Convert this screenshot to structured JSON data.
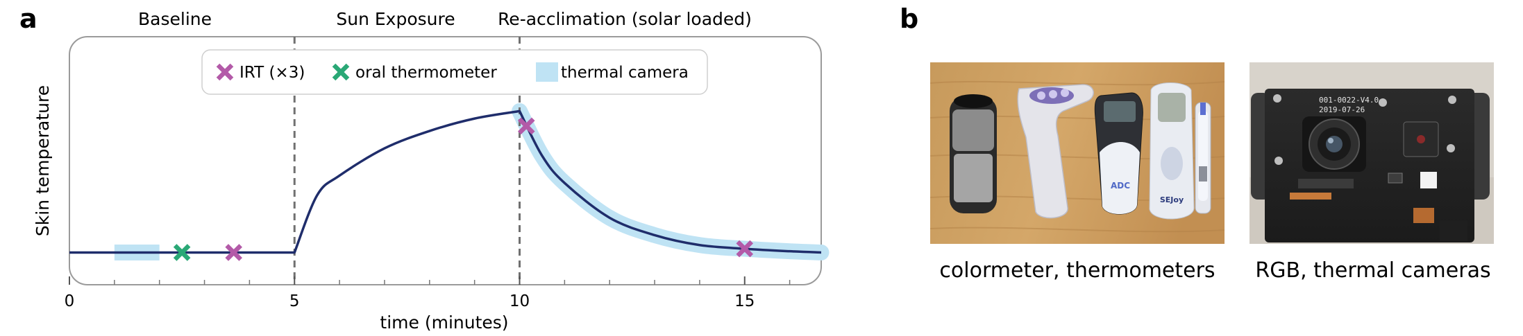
{
  "panel_a": {
    "letter": "a"
  },
  "panel_b": {
    "letter": "b"
  },
  "phases": {
    "baseline": "Baseline",
    "sun": "Sun Exposure",
    "reacclimation": "Re-acclimation (solar loaded)"
  },
  "legend": {
    "irt": "IRT (×3)",
    "oral": "oral thermometer",
    "thermal": "thermal camera"
  },
  "colors": {
    "curve": "#1f2d6b",
    "irt": "#b35aa8",
    "oral": "#2aa876",
    "thermal": "#bfe3f4",
    "divider": "#707070"
  },
  "photos": {
    "left_caption": "colormeter, thermometers",
    "right_caption": "RGB, thermal cameras",
    "device_labels": [
      "ADC",
      "SEJoy"
    ],
    "board_labels": [
      "001-0022-V4.0",
      "2019-07-26"
    ]
  },
  "chart_data": {
    "type": "line",
    "title": "",
    "xlabel": "time (minutes)",
    "ylabel": "Skin temperature",
    "xlim": [
      0,
      16.7
    ],
    "ylim": [
      0,
      1.0
    ],
    "xticks": [
      0,
      5,
      10,
      15
    ],
    "xtick_labels": [
      "0",
      "5",
      "10",
      "15"
    ],
    "minor_xticks": [
      1,
      2,
      3,
      4,
      6,
      7,
      8,
      9,
      11,
      12,
      13,
      14,
      16
    ],
    "phase_boundaries": [
      5,
      10
    ],
    "series": [
      {
        "name": "skin temperature",
        "x": [
          0,
          5,
          5.5,
          6,
          7,
          8,
          9,
          10,
          10.5,
          11,
          12,
          13,
          14,
          15,
          16,
          16.7
        ],
        "y": [
          0.13,
          0.13,
          0.36,
          0.44,
          0.55,
          0.62,
          0.67,
          0.7,
          0.52,
          0.41,
          0.27,
          0.2,
          0.16,
          0.145,
          0.135,
          0.13
        ]
      }
    ],
    "irt_points": [
      {
        "x": 3.65,
        "y": 0.13
      },
      {
        "x": 10.15,
        "y": 0.64
      },
      {
        "x": 15.0,
        "y": 0.145
      }
    ],
    "oral_points": [
      {
        "x": 2.5,
        "y": 0.13
      }
    ],
    "thermal_band": [
      {
        "x": [
          1,
          2
        ],
        "y": [
          0.13,
          0.13
        ],
        "halfwidth": 0.032
      },
      {
        "x": [
          10,
          10.5,
          11,
          12,
          13,
          14,
          15,
          16,
          16.7
        ],
        "y": [
          0.7,
          0.52,
          0.41,
          0.27,
          0.2,
          0.16,
          0.145,
          0.135,
          0.13
        ],
        "halfwidth": 0.032
      }
    ]
  }
}
